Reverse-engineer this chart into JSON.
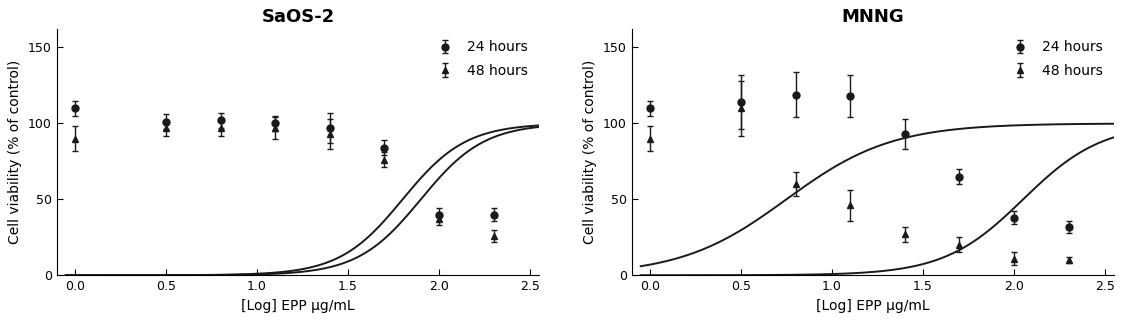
{
  "saos2": {
    "title": "SaOS-2",
    "x24": [
      0.0,
      0.5,
      0.8,
      1.1,
      1.4,
      1.7,
      2.0,
      2.3
    ],
    "y24": [
      110,
      101,
      102,
      100,
      97,
      84,
      40,
      40
    ],
    "yerr24": [
      5,
      5,
      5,
      5,
      10,
      5,
      4,
      4
    ],
    "x48": [
      0.0,
      0.5,
      0.8,
      1.1,
      1.4,
      1.7,
      2.0,
      2.3
    ],
    "y48": [
      90,
      97,
      97,
      97,
      93,
      76,
      37,
      26
    ],
    "yerr48": [
      8,
      5,
      5,
      7,
      10,
      5,
      4,
      4
    ],
    "curve24_params": [
      100,
      0,
      1.9,
      2.5
    ],
    "curve48_params": [
      100,
      0,
      1.8,
      2.5
    ]
  },
  "mnng": {
    "title": "MNNG",
    "x24": [
      0.0,
      0.5,
      0.8,
      1.1,
      1.4,
      1.7,
      2.0,
      2.3
    ],
    "y24": [
      110,
      114,
      119,
      118,
      93,
      65,
      38,
      32
    ],
    "yerr24": [
      5,
      18,
      15,
      14,
      10,
      5,
      4,
      4
    ],
    "x48": [
      0.0,
      0.5,
      0.8,
      1.1,
      1.4,
      1.7,
      2.0,
      2.3
    ],
    "y48": [
      90,
      110,
      60,
      46,
      27,
      20,
      11,
      10
    ],
    "yerr48": [
      8,
      18,
      8,
      10,
      5,
      5,
      4,
      2
    ],
    "curve24_params": [
      100,
      0,
      2.05,
      2.0
    ],
    "curve48_params": [
      100,
      0,
      0.75,
      1.5
    ]
  },
  "xlabel": "[Log] EPP μg/mL",
  "ylabel": "Cell viability (% of control)",
  "xlim": [
    -0.1,
    2.55
  ],
  "ylim": [
    0,
    162
  ],
  "yticks": [
    0,
    50,
    100,
    150
  ],
  "xticks": [
    0.0,
    0.5,
    1.0,
    1.5,
    2.0,
    2.5
  ],
  "legend_24": "24 hours",
  "legend_48": "48 hours",
  "line_color": "#1a1a1a",
  "marker_color": "#1a1a1a",
  "bg_color": "#ffffff",
  "title_fontsize": 13,
  "label_fontsize": 10,
  "tick_fontsize": 9,
  "legend_fontsize": 10
}
